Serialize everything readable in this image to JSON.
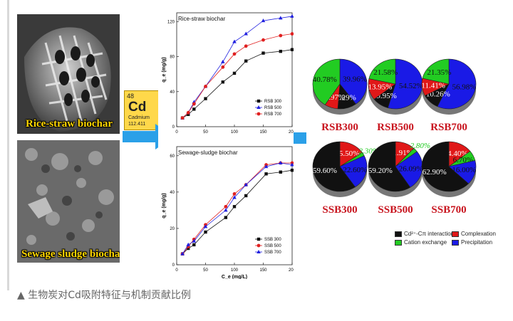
{
  "images": {
    "rice_label": "Rice-straw biochar",
    "sludge_label": "Sewage sludge biochar"
  },
  "element": {
    "number": "48",
    "symbol": "Cd",
    "name": "Cadmium",
    "mass": "112.411"
  },
  "caption": "▲ 生物炭对Cd吸附特征与机制贡献比例",
  "colors": {
    "cation_exchange": "#22cc22",
    "complexation": "#e01818",
    "precipitation": "#1a1ae6",
    "cpi": "#111111",
    "arrow": "#2ba0e8",
    "cd_box": "#ffd84a"
  },
  "chart_data": [
    {
      "type": "line",
      "title": "Rice-straw biochar",
      "xlabel": "",
      "ylabel": "q_e (mg/g)",
      "xlim": [
        0,
        200
      ],
      "ylim": [
        0,
        130
      ],
      "xticks": [
        "0",
        "50",
        "100",
        "150",
        "200"
      ],
      "yticks": [
        "0",
        "40",
        "80",
        "120"
      ],
      "legend": "bottom-right",
      "series": [
        {
          "name": "RSB 300",
          "marker": "square",
          "color": "#111111",
          "x": [
            10,
            20,
            30,
            50,
            80,
            100,
            120,
            150,
            180,
            200
          ],
          "y": [
            10,
            14,
            20,
            32,
            51,
            61,
            75,
            84,
            86,
            88
          ]
        },
        {
          "name": "RSB 500",
          "marker": "triangle",
          "color": "#2020e0",
          "x": [
            10,
            20,
            30,
            50,
            80,
            100,
            120,
            150,
            180,
            200
          ],
          "y": [
            10,
            16,
            28,
            46,
            74,
            97,
            106,
            121,
            124,
            126
          ]
        },
        {
          "name": "RSB 700",
          "marker": "circle",
          "color": "#e02020",
          "x": [
            10,
            20,
            30,
            50,
            80,
            100,
            120,
            150,
            180,
            200
          ],
          "y": [
            10,
            16,
            26,
            46,
            68,
            83,
            92,
            99,
            104,
            106
          ]
        }
      ]
    },
    {
      "type": "line",
      "title": "Sewage-sludge biochar",
      "xlabel": "C_e (mg/L)",
      "ylabel": "q_e (mg/g)",
      "xlim": [
        0,
        200
      ],
      "ylim": [
        0,
        65
      ],
      "xticks": [
        "0",
        "50",
        "100",
        "150",
        "200"
      ],
      "yticks": [
        "0",
        "20",
        "40",
        "60"
      ],
      "legend": "bottom-right",
      "series": [
        {
          "name": "SSB 300",
          "marker": "square",
          "color": "#111111",
          "x": [
            10,
            20,
            30,
            50,
            85,
            100,
            120,
            155,
            180,
            200
          ],
          "y": [
            6,
            9,
            11,
            18,
            26,
            32,
            38,
            50,
            51,
            52
          ]
        },
        {
          "name": "SSB 500",
          "marker": "circle",
          "color": "#e02020",
          "x": [
            10,
            20,
            30,
            50,
            85,
            100,
            120,
            155,
            180,
            200
          ],
          "y": [
            6,
            10,
            14,
            22,
            32,
            39,
            44,
            55,
            56,
            56
          ]
        },
        {
          "name": "SSB 700",
          "marker": "triangle",
          "color": "#2020e0",
          "x": [
            10,
            20,
            30,
            50,
            85,
            100,
            120,
            155,
            180,
            200
          ],
          "y": [
            6,
            11,
            13,
            21,
            30,
            37,
            44,
            54,
            56,
            55
          ]
        }
      ]
    },
    {
      "type": "pie",
      "legend": "bottom-right",
      "legend_labels": [
        "Cd²⁺-Cπ interaction",
        "Complexation",
        "Cation exchange",
        "Precipitation"
      ],
      "pies": [
        {
          "title": "RSB300",
          "slices": [
            {
              "label": "39.96%",
              "value": 39.96,
              "category": "precipitation"
            },
            {
              "label": "11.29%",
              "value": 11.29,
              "category": "cpi"
            },
            {
              "label": "7.97%",
              "value": 7.97,
              "category": "complexation"
            },
            {
              "label": "40.78%",
              "value": 40.78,
              "category": "cation_exchange"
            }
          ]
        },
        {
          "title": "RSB500",
          "slices": [
            {
              "label": "54.52%",
              "value": 54.52,
              "category": "precipitation"
            },
            {
              "label": "9.95%",
              "value": 9.95,
              "category": "cpi"
            },
            {
              "label": "13.95%",
              "value": 13.95,
              "category": "complexation"
            },
            {
              "label": "21.58%",
              "value": 21.58,
              "category": "cation_exchange"
            }
          ]
        },
        {
          "title": "RSB700",
          "slices": [
            {
              "label": "56.98%",
              "value": 56.98,
              "category": "precipitation"
            },
            {
              "label": "10.26%",
              "value": 10.26,
              "category": "cpi"
            },
            {
              "label": "11.41%",
              "value": 11.41,
              "category": "complexation"
            },
            {
              "label": "21.35%",
              "value": 21.35,
              "category": "cation_exchange"
            }
          ]
        },
        {
          "title": "SSB300",
          "slices": [
            {
              "label": "15.50%",
              "value": 15.5,
              "category": "complexation"
            },
            {
              "label": "2.30%",
              "value": 2.3,
              "category": "cation_exchange"
            },
            {
              "label": "22.60%",
              "value": 22.6,
              "category": "precipitation"
            },
            {
              "label": "59.60%",
              "value": 59.6,
              "category": "cpi"
            }
          ]
        },
        {
          "title": "SSB500",
          "slices": [
            {
              "label": "11.91%",
              "value": 11.91,
              "category": "complexation"
            },
            {
              "label": "2.80%",
              "value": 2.8,
              "category": "cation_exchange"
            },
            {
              "label": "26.09%",
              "value": 26.09,
              "category": "precipitation"
            },
            {
              "label": "59.20%",
              "value": 59.2,
              "category": "cpi"
            }
          ]
        },
        {
          "title": "SSB700",
          "slices": [
            {
              "label": "14.40%",
              "value": 14.4,
              "category": "complexation"
            },
            {
              "label": "6.70%",
              "value": 6.7,
              "category": "cation_exchange"
            },
            {
              "label": "16.00%",
              "value": 16.0,
              "category": "precipitation"
            },
            {
              "label": "62.90%",
              "value": 62.9,
              "category": "cpi"
            }
          ]
        }
      ]
    }
  ]
}
